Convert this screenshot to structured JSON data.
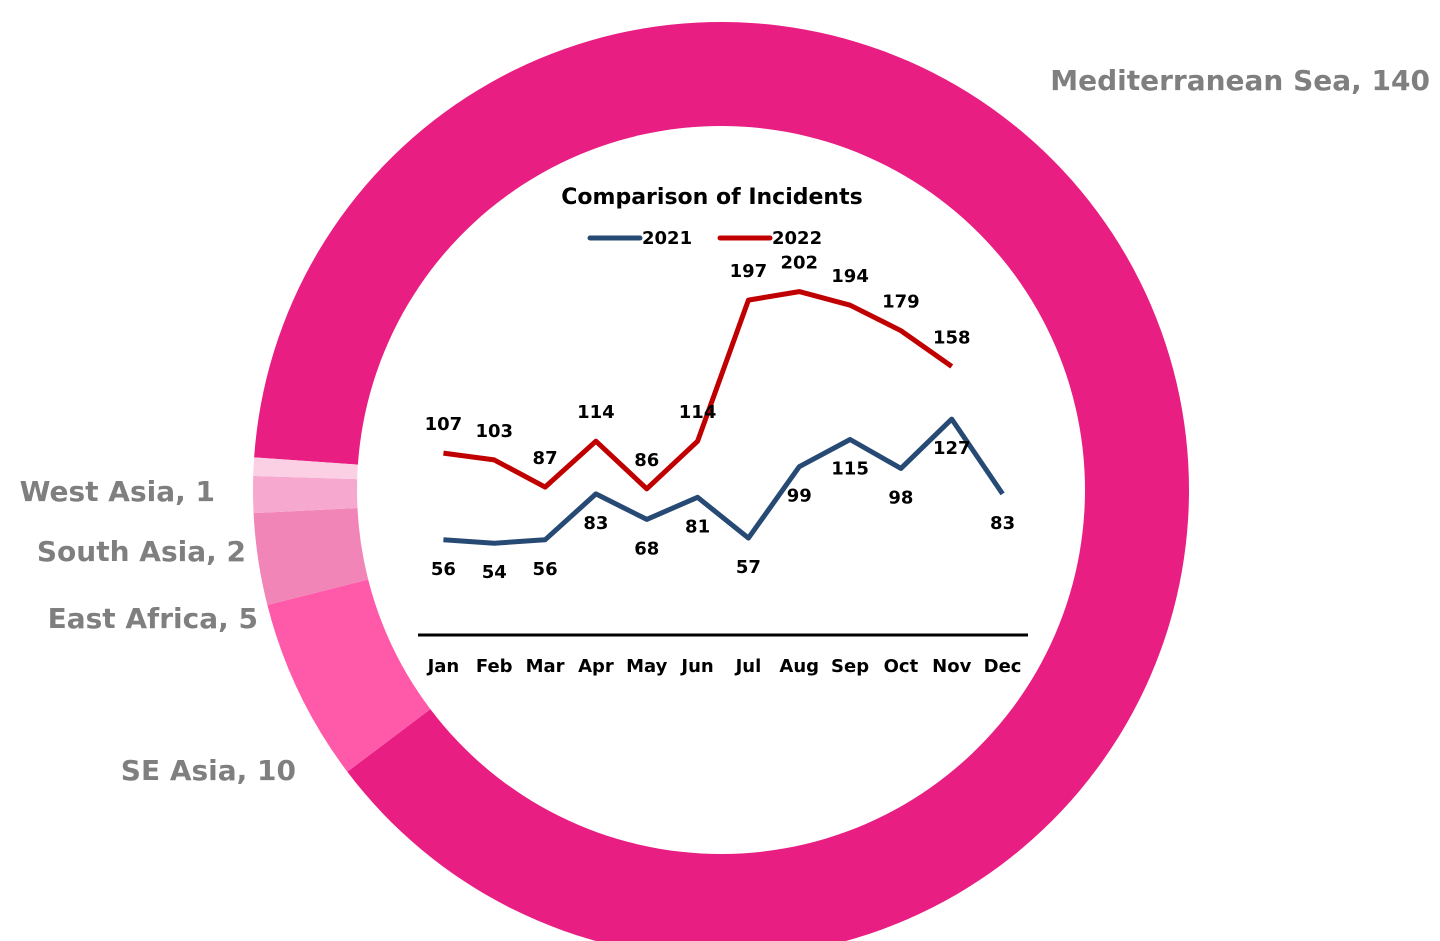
{
  "chart_data": [
    {
      "type": "donut",
      "categories": [
        "Mediterranean Sea",
        "SE Asia",
        "East Africa",
        "South Asia",
        "West Asia"
      ],
      "values": [
        140,
        10,
        5,
        2,
        1
      ],
      "value_labels": [
        "Mediterranean Sea, 140",
        "SE Asia, 10",
        "East Africa, 5",
        "South Asia, 2",
        "West Asia, 1"
      ],
      "colors": [
        "#e91e82",
        "#ff5aaa",
        "#f285b8",
        "#f7a8ce",
        "#fbd0e4"
      ]
    },
    {
      "type": "line",
      "title": "Comparison of Incidents",
      "categories": [
        "Jan",
        "Feb",
        "Mar",
        "Apr",
        "May",
        "Jun",
        "Jul",
        "Aug",
        "Sep",
        "Oct",
        "Nov",
        "Dec"
      ],
      "series": [
        {
          "name": "2021",
          "color": "#264a73",
          "values": [
            56,
            54,
            56,
            83,
            68,
            81,
            57,
            99,
            115,
            98,
            127,
            83
          ]
        },
        {
          "name": "2022",
          "color": "#c00000",
          "values": [
            107,
            103,
            87,
            114,
            86,
            114,
            197,
            202,
            194,
            179,
            158,
            null
          ]
        }
      ],
      "ylim": [
        0,
        250
      ]
    }
  ]
}
